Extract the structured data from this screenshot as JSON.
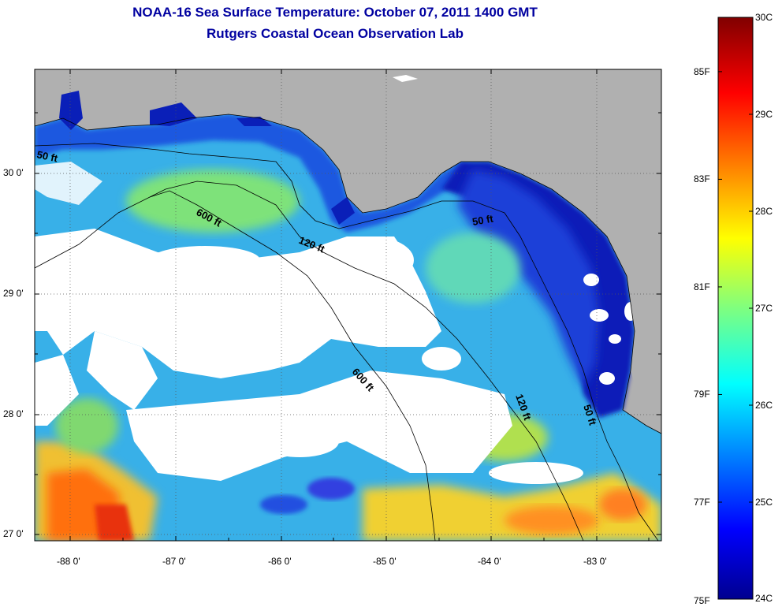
{
  "title": {
    "line1": "NOAA-16 Sea Surface Temperature:  October 07, 2011 1400 GMT",
    "line2": "Rutgers Coastal Ocean Observation Lab"
  },
  "map": {
    "lat_labels": [
      "30 0'",
      "29 0'",
      "28 0'",
      "27 0'"
    ],
    "lon_labels": [
      "-88 0'",
      "-87 0'",
      "-86 0'",
      "-85 0'",
      "-84 0'",
      "-83 0'"
    ],
    "lon_range": [
      -88.35,
      -82.35
    ],
    "lat_range": [
      26.95,
      30.85
    ],
    "contour_labels": [
      "50 ft",
      "600 ft",
      "120 ft",
      "50 ft",
      "600 ft",
      "120 ft",
      "50 ft"
    ]
  },
  "colorbar": {
    "fahrenheit": [
      {
        "label": "85F",
        "c": 29.44
      },
      {
        "label": "83F",
        "c": 28.33
      },
      {
        "label": "81F",
        "c": 27.22
      },
      {
        "label": "79F",
        "c": 26.11
      },
      {
        "label": "77F",
        "c": 25.0
      },
      {
        "label": "75F",
        "c": 23.89
      }
    ],
    "celsius": [
      {
        "label": "30C",
        "c": 30
      },
      {
        "label": "29C",
        "c": 29
      },
      {
        "label": "28C",
        "c": 28
      },
      {
        "label": "27C",
        "c": 27
      },
      {
        "label": "26C",
        "c": 26
      },
      {
        "label": "25C",
        "c": 25
      },
      {
        "label": "24C",
        "c": 24
      }
    ],
    "range_c": [
      24,
      30
    ]
  },
  "colors": {
    "land": "#b0b0b0",
    "cloud": "#ffffff",
    "title": "#0000a0"
  }
}
